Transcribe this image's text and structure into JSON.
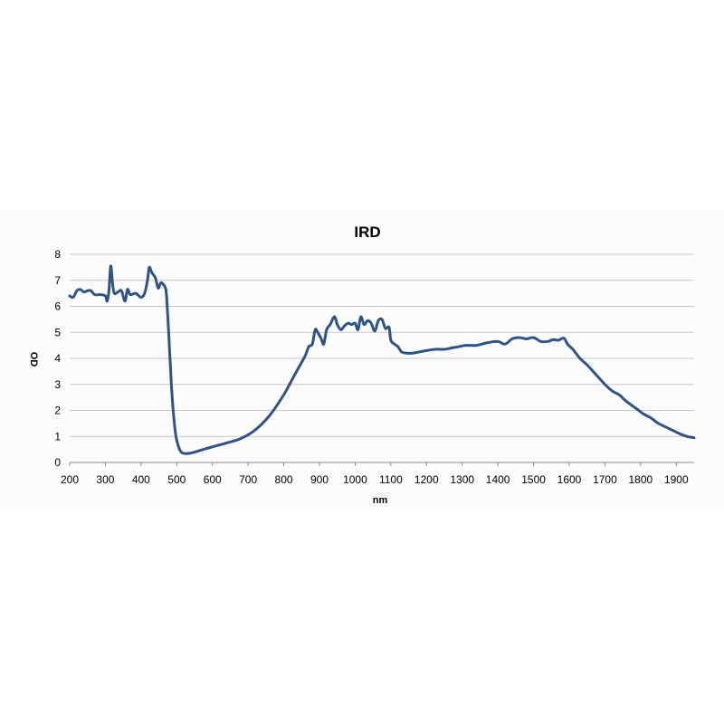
{
  "chart_data": {
    "type": "line",
    "title": "IRD",
    "xlabel": "nm",
    "ylabel": "OD",
    "xlim": [
      200,
      1950
    ],
    "ylim": [
      0,
      8
    ],
    "x_ticks": [
      200,
      300,
      400,
      500,
      600,
      700,
      800,
      900,
      1000,
      1100,
      1200,
      1300,
      1400,
      1500,
      1600,
      1700,
      1800,
      1900
    ],
    "y_ticks": [
      0,
      1,
      2,
      3,
      4,
      5,
      6,
      7,
      8
    ],
    "grid": "horizontal",
    "line_color": "#2e5387",
    "series": [
      {
        "name": "",
        "points": [
          [
            200,
            6.4
          ],
          [
            210,
            6.35
          ],
          [
            220,
            6.6
          ],
          [
            230,
            6.65
          ],
          [
            240,
            6.55
          ],
          [
            250,
            6.6
          ],
          [
            260,
            6.6
          ],
          [
            270,
            6.45
          ],
          [
            285,
            6.45
          ],
          [
            300,
            6.4
          ],
          [
            305,
            6.2
          ],
          [
            310,
            6.6
          ],
          [
            315,
            7.55
          ],
          [
            320,
            6.9
          ],
          [
            325,
            6.5
          ],
          [
            335,
            6.55
          ],
          [
            345,
            6.6
          ],
          [
            355,
            6.2
          ],
          [
            362,
            6.65
          ],
          [
            370,
            6.45
          ],
          [
            385,
            6.5
          ],
          [
            400,
            6.35
          ],
          [
            410,
            6.5
          ],
          [
            418,
            7.0
          ],
          [
            423,
            7.5
          ],
          [
            430,
            7.3
          ],
          [
            440,
            7.1
          ],
          [
            448,
            6.7
          ],
          [
            455,
            6.9
          ],
          [
            462,
            6.85
          ],
          [
            470,
            6.6
          ],
          [
            475,
            5.6
          ],
          [
            480,
            4.3
          ],
          [
            485,
            3.0
          ],
          [
            490,
            2.0
          ],
          [
            495,
            1.3
          ],
          [
            500,
            0.85
          ],
          [
            510,
            0.45
          ],
          [
            520,
            0.35
          ],
          [
            540,
            0.36
          ],
          [
            570,
            0.48
          ],
          [
            600,
            0.6
          ],
          [
            640,
            0.75
          ],
          [
            680,
            0.92
          ],
          [
            720,
            1.25
          ],
          [
            760,
            1.8
          ],
          [
            800,
            2.6
          ],
          [
            820,
            3.1
          ],
          [
            840,
            3.6
          ],
          [
            860,
            4.1
          ],
          [
            870,
            4.45
          ],
          [
            880,
            4.55
          ],
          [
            888,
            5.1
          ],
          [
            895,
            5.0
          ],
          [
            905,
            4.75
          ],
          [
            912,
            4.55
          ],
          [
            920,
            5.1
          ],
          [
            930,
            5.3
          ],
          [
            942,
            5.6
          ],
          [
            950,
            5.3
          ],
          [
            960,
            5.1
          ],
          [
            970,
            5.25
          ],
          [
            980,
            5.35
          ],
          [
            990,
            5.3
          ],
          [
            1000,
            5.35
          ],
          [
            1008,
            5.1
          ],
          [
            1016,
            5.6
          ],
          [
            1025,
            5.3
          ],
          [
            1035,
            5.45
          ],
          [
            1045,
            5.35
          ],
          [
            1055,
            5.05
          ],
          [
            1065,
            5.45
          ],
          [
            1075,
            5.5
          ],
          [
            1085,
            5.15
          ],
          [
            1095,
            5.2
          ],
          [
            1100,
            4.7
          ],
          [
            1110,
            4.55
          ],
          [
            1120,
            4.45
          ],
          [
            1130,
            4.25
          ],
          [
            1145,
            4.2
          ],
          [
            1160,
            4.2
          ],
          [
            1180,
            4.25
          ],
          [
            1200,
            4.3
          ],
          [
            1225,
            4.35
          ],
          [
            1250,
            4.35
          ],
          [
            1270,
            4.4
          ],
          [
            1290,
            4.45
          ],
          [
            1310,
            4.5
          ],
          [
            1340,
            4.5
          ],
          [
            1370,
            4.6
          ],
          [
            1400,
            4.65
          ],
          [
            1420,
            4.55
          ],
          [
            1440,
            4.75
          ],
          [
            1460,
            4.8
          ],
          [
            1480,
            4.75
          ],
          [
            1500,
            4.8
          ],
          [
            1520,
            4.65
          ],
          [
            1540,
            4.65
          ],
          [
            1555,
            4.72
          ],
          [
            1570,
            4.7
          ],
          [
            1585,
            4.78
          ],
          [
            1595,
            4.55
          ],
          [
            1610,
            4.35
          ],
          [
            1630,
            4.0
          ],
          [
            1650,
            3.75
          ],
          [
            1680,
            3.3
          ],
          [
            1700,
            3.0
          ],
          [
            1720,
            2.75
          ],
          [
            1740,
            2.6
          ],
          [
            1760,
            2.35
          ],
          [
            1790,
            2.05
          ],
          [
            1810,
            1.85
          ],
          [
            1830,
            1.7
          ],
          [
            1850,
            1.5
          ],
          [
            1880,
            1.3
          ],
          [
            1910,
            1.1
          ],
          [
            1930,
            1.0
          ],
          [
            1950,
            0.95
          ]
        ]
      }
    ]
  }
}
